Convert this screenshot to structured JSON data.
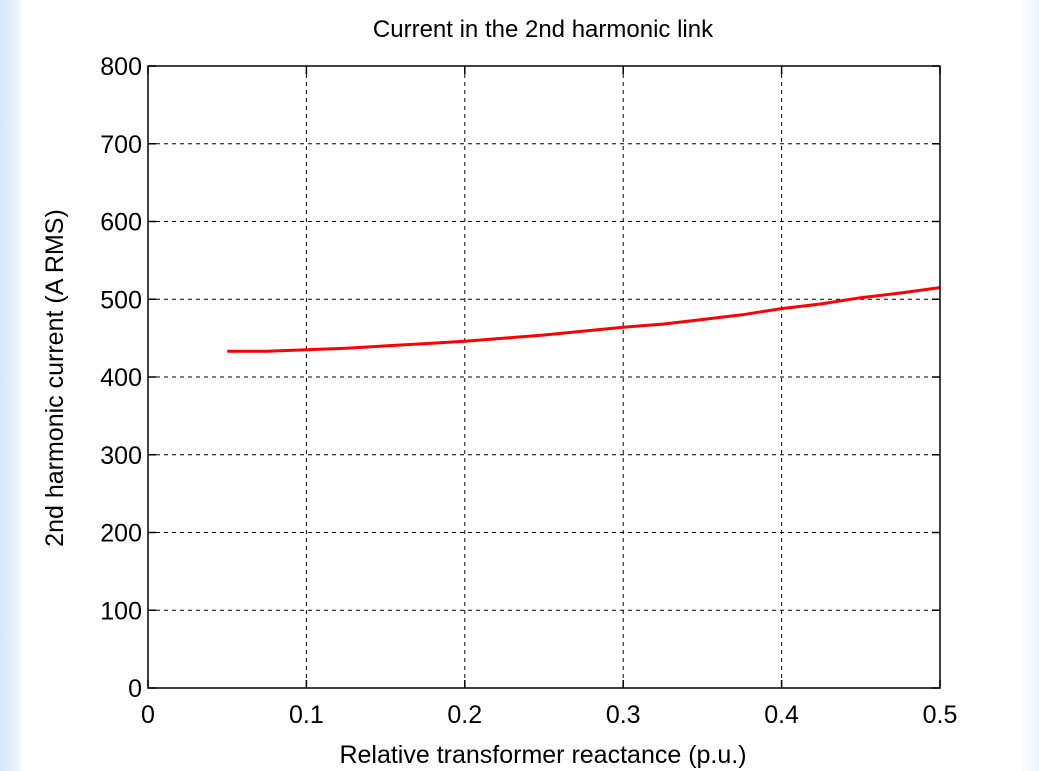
{
  "chart_data": {
    "type": "line",
    "title": "Current in the 2nd harmonic link",
    "xlabel": "Relative transformer reactance (p.u.)",
    "ylabel": "2nd harmonic current (A RMS)",
    "xlim": [
      0,
      0.5
    ],
    "ylim": [
      0,
      800
    ],
    "xticks": [
      0,
      0.1,
      0.2,
      0.3,
      0.4,
      0.5
    ],
    "xtick_labels": [
      "0",
      "0.1",
      "0.2",
      "0.3",
      "0.4",
      "0.5"
    ],
    "yticks": [
      0,
      100,
      200,
      300,
      400,
      500,
      600,
      700,
      800
    ],
    "ytick_labels": [
      "0",
      "100",
      "200",
      "300",
      "400",
      "500",
      "600",
      "700",
      "800"
    ],
    "grid": true,
    "grid_style": "dashed",
    "series": [
      {
        "color": "#ff0000",
        "x": [
          0.05,
          0.075,
          0.1,
          0.125,
          0.15,
          0.175,
          0.2,
          0.225,
          0.25,
          0.275,
          0.3,
          0.325,
          0.35,
          0.375,
          0.4,
          0.425,
          0.45,
          0.475,
          0.5
        ],
        "y": [
          433,
          433,
          435,
          437,
          440,
          443,
          446,
          450,
          454,
          459,
          464,
          468,
          474,
          480,
          488,
          494,
          502,
          508,
          515
        ]
      }
    ]
  }
}
